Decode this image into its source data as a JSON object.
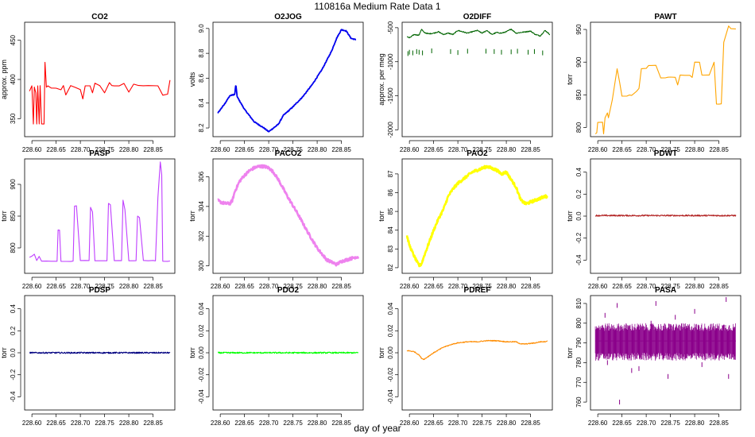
{
  "figure": {
    "title": "110816a   Medium Rate Data 1",
    "xlabel": "day of year"
  },
  "chart_data": [
    {
      "type": "line",
      "title": "CO2",
      "ylabel": "approx. ppm",
      "color": "#ff0000",
      "xlim": [
        228.585,
        228.895
      ],
      "ylim": [
        327,
        473
      ],
      "xticks": [
        "228.60",
        "228.65",
        "228.70",
        "228.75",
        "228.80",
        "228.85"
      ],
      "yticks": [
        "350",
        "400",
        "450"
      ],
      "series": [
        {
          "x": [
            228.595,
            228.6,
            228.603,
            228.605,
            228.608,
            228.61,
            228.612,
            228.615,
            228.617,
            228.62,
            228.625,
            228.627,
            228.63,
            228.633,
            228.64,
            228.65,
            228.66,
            228.665,
            228.67,
            228.68,
            228.69,
            228.7,
            228.705,
            228.71,
            228.72,
            228.725,
            228.73,
            228.74,
            228.75,
            228.76,
            228.765,
            228.77,
            228.78,
            228.79,
            228.8,
            228.81,
            228.82,
            228.83,
            228.84,
            228.86,
            228.87,
            228.88,
            228.885
          ],
          "y": [
            385,
            392,
            343,
            390,
            383,
            343,
            392,
            343,
            392,
            343,
            343,
            422,
            390,
            392,
            389,
            389,
            387,
            392,
            380,
            392,
            390,
            387,
            375,
            392,
            392,
            383,
            395,
            392,
            383,
            396,
            392,
            392,
            392,
            395,
            384,
            394,
            392,
            392,
            392,
            392,
            380,
            381,
            399
          ]
        }
      ]
    },
    {
      "type": "line",
      "title": "O2JOG",
      "ylabel": "volts",
      "color": "#0000ee",
      "xlim": [
        228.585,
        228.895
      ],
      "ylim": [
        8.13,
        9.05
      ],
      "xticks": [
        "228.60",
        "228.65",
        "228.70",
        "228.75",
        "228.80",
        "228.85"
      ],
      "yticks": [
        "8.2",
        "8.4",
        "8.6",
        "8.8",
        "9.0"
      ],
      "series": [
        {
          "x": [
            228.595,
            228.61,
            228.62,
            228.63,
            228.632,
            228.635,
            228.65,
            228.67,
            228.69,
            228.7,
            228.71,
            228.72,
            228.73,
            228.75,
            228.77,
            228.79,
            228.81,
            228.83,
            228.84,
            228.85,
            228.86,
            228.87,
            228.88
          ],
          "y": [
            8.32,
            8.4,
            8.46,
            8.47,
            8.55,
            8.45,
            8.35,
            8.25,
            8.2,
            8.17,
            8.2,
            8.23,
            8.3,
            8.37,
            8.45,
            8.55,
            8.67,
            8.82,
            8.92,
            8.99,
            8.98,
            8.92,
            8.91
          ]
        }
      ]
    },
    {
      "type": "line",
      "title": "O2DIFF",
      "ylabel": "approx. per meg",
      "color": "#006400",
      "xlim": [
        228.585,
        228.895
      ],
      "ylim": [
        -2100,
        -420
      ],
      "xticks": [
        "228.60",
        "228.65",
        "228.70",
        "228.75",
        "228.80",
        "228.85"
      ],
      "yticks": [
        "-2000",
        "-1500",
        "-1000",
        "-500"
      ],
      "series": [
        {
          "x": [
            228.595,
            228.6,
            228.61,
            228.62,
            228.625,
            228.63,
            228.64,
            228.65,
            228.66,
            228.67,
            228.68,
            228.69,
            228.7,
            228.71,
            228.72,
            228.73,
            228.74,
            228.75,
            228.76,
            228.77,
            228.78,
            228.79,
            228.8,
            228.81,
            228.82,
            228.83,
            228.84,
            228.85,
            228.86,
            228.87,
            228.88,
            228.89
          ],
          "y": [
            -630,
            -650,
            -600,
            -610,
            -520,
            -570,
            -590,
            -580,
            -560,
            -600,
            -580,
            -600,
            -540,
            -560,
            -580,
            -560,
            -540,
            -580,
            -540,
            -600,
            -570,
            -580,
            -560,
            -520,
            -580,
            -570,
            -560,
            -550,
            -600,
            -620,
            -540,
            -600
          ]
        },
        {
          "name": "outliers",
          "points": [
            [
              228.597,
              -880
            ],
            [
              228.6,
              -860
            ],
            [
              228.607,
              -870
            ],
            [
              228.615,
              -850
            ],
            [
              228.62,
              -860
            ],
            [
              228.627,
              -870
            ],
            [
              228.646,
              -840
            ],
            [
              228.685,
              -850
            ],
            [
              228.7,
              -865
            ],
            [
              228.72,
              -845
            ],
            [
              228.758,
              -845
            ],
            [
              228.775,
              -850
            ],
            [
              228.79,
              -860
            ],
            [
              228.81,
              -855
            ],
            [
              228.823,
              -845
            ],
            [
              228.845,
              -860
            ],
            [
              228.858,
              -850
            ],
            [
              228.875,
              -870
            ]
          ]
        }
      ]
    },
    {
      "type": "line",
      "title": "PAWT",
      "ylabel": "torr",
      "color": "#ffa500",
      "xlim": [
        228.585,
        228.895
      ],
      "ylim": [
        786,
        961
      ],
      "xticks": [
        "228.60",
        "228.65",
        "228.70",
        "228.75",
        "228.80",
        "228.85"
      ],
      "yticks": [
        "800",
        "850",
        "900",
        "950"
      ],
      "series": [
        {
          "x": [
            228.595,
            228.598,
            228.6,
            228.605,
            228.61,
            228.612,
            228.615,
            228.62,
            228.622,
            228.63,
            228.64,
            228.645,
            228.65,
            228.66,
            228.665,
            228.67,
            228.68,
            228.685,
            228.69,
            228.7,
            228.705,
            228.71,
            228.72,
            228.73,
            228.74,
            228.745,
            228.75,
            228.76,
            228.765,
            228.77,
            228.78,
            228.79,
            228.795,
            228.8,
            228.81,
            228.815,
            228.82,
            228.83,
            228.84,
            228.845,
            228.85,
            228.855,
            228.86,
            228.87,
            228.875,
            228.885
          ],
          "y": [
            790,
            792,
            808,
            808,
            808,
            790,
            815,
            822,
            815,
            842,
            890,
            870,
            848,
            848,
            850,
            849,
            855,
            860,
            890,
            890,
            895,
            895,
            895,
            876,
            876,
            877,
            877,
            877,
            865,
            880,
            880,
            880,
            877,
            900,
            900,
            880,
            880,
            880,
            900,
            836,
            836,
            836,
            930,
            955,
            951,
            951
          ]
        }
      ]
    },
    {
      "type": "line",
      "title": "PASP",
      "ylabel": "torr",
      "color": "#bf3eff",
      "xlim": [
        228.585,
        228.895
      ],
      "ylim": [
        760,
        940
      ],
      "xticks": [
        "228.60",
        "228.65",
        "228.70",
        "228.75",
        "228.80",
        "228.85"
      ],
      "yticks": [
        "800",
        "850",
        "900"
      ],
      "series": [
        {
          "x": [
            228.595,
            228.6,
            228.605,
            228.61,
            228.615,
            228.62,
            228.63,
            228.64,
            228.652,
            228.654,
            228.657,
            228.66,
            228.67,
            228.68,
            228.685,
            228.688,
            228.692,
            228.7,
            228.71,
            228.718,
            228.721,
            228.725,
            228.73,
            228.74,
            228.75,
            228.755,
            228.758,
            228.762,
            228.77,
            228.78,
            228.785,
            228.788,
            228.792,
            228.8,
            228.81,
            228.815,
            228.818,
            228.822,
            228.83,
            228.84,
            228.85,
            228.855,
            228.86,
            228.865,
            228.868,
            228.87,
            228.88,
            228.885
          ],
          "y": [
            785,
            787,
            790,
            780,
            787,
            779,
            779,
            779,
            779,
            828,
            828,
            779,
            779,
            779,
            779,
            866,
            866,
            780,
            780,
            780,
            864,
            857,
            780,
            780,
            780,
            780,
            870,
            868,
            780,
            780,
            780,
            875,
            860,
            780,
            780,
            780,
            850,
            848,
            780,
            780,
            780,
            780,
            880,
            935,
            915,
            779,
            779,
            779
          ]
        }
      ]
    },
    {
      "type": "line",
      "title": "PACO2",
      "ylabel": "torr",
      "color": "#ee82ee",
      "xlim": [
        228.585,
        228.895
      ],
      "ylim": [
        299.5,
        307.2
      ],
      "xticks": [
        "228.60",
        "228.65",
        "228.70",
        "228.75",
        "228.80",
        "228.85"
      ],
      "yticks": [
        "300",
        "302",
        "304",
        "306"
      ],
      "series": [
        {
          "x": [
            228.595,
            228.6,
            228.61,
            228.62,
            228.625,
            228.63,
            228.64,
            228.65,
            228.66,
            228.67,
            228.68,
            228.69,
            228.7,
            228.71,
            228.72,
            228.74,
            228.76,
            228.78,
            228.8,
            228.82,
            228.84,
            228.85,
            228.86,
            228.87,
            228.88,
            228.885
          ],
          "y": [
            304.4,
            304.3,
            304.2,
            304.2,
            304.4,
            305,
            305.7,
            306.1,
            306.4,
            306.6,
            306.7,
            306.7,
            306.6,
            306.3,
            305.8,
            304.6,
            303.5,
            302.3,
            301.2,
            300.4,
            300.1,
            300.3,
            300.4,
            300.5,
            300.6,
            300.6
          ]
        }
      ]
    },
    {
      "type": "line",
      "title": "PAO2",
      "ylabel": "torr",
      "color": "#ffff00",
      "xlim": [
        228.585,
        228.895
      ],
      "ylim": [
        81.7,
        87.8
      ],
      "xticks": [
        "228.60",
        "228.65",
        "228.70",
        "228.75",
        "228.80",
        "228.85"
      ],
      "yticks": [
        "82",
        "83",
        "84",
        "85",
        "86",
        "87"
      ],
      "series": [
        {
          "x": [
            228.595,
            228.6,
            228.61,
            228.62,
            228.625,
            228.63,
            228.64,
            228.65,
            228.66,
            228.67,
            228.68,
            228.69,
            228.7,
            228.71,
            228.72,
            228.73,
            228.74,
            228.75,
            228.76,
            228.77,
            228.78,
            228.79,
            228.8,
            228.81,
            228.82,
            228.83,
            228.84,
            228.85,
            228.86,
            228.87,
            228.88,
            228.885
          ],
          "y": [
            83.7,
            83.2,
            82.6,
            82.1,
            82.2,
            82.6,
            83.3,
            84,
            84.6,
            85.1,
            85.8,
            86.2,
            86.5,
            86.7,
            86.9,
            87.1,
            87.2,
            87.3,
            87.4,
            87.3,
            87.2,
            87,
            87.1,
            86.7,
            86.3,
            85.6,
            85.4,
            85.5,
            85.6,
            85.7,
            85.8,
            85.8
          ]
        }
      ]
    },
    {
      "type": "line",
      "title": "PDWT",
      "ylabel": "torr",
      "color": "#b22222",
      "xlim": [
        228.585,
        228.895
      ],
      "ylim": [
        -0.52,
        0.52
      ],
      "xticks": [
        "228.60",
        "228.65",
        "228.70",
        "228.75",
        "228.80",
        "228.85"
      ],
      "yticks": [
        "-0.4",
        "-0.2",
        "0.0",
        "0.2",
        "0.4"
      ],
      "series": [
        {
          "x": [
            228.595,
            228.885
          ],
          "y": [
            0.005,
            0.005
          ]
        }
      ]
    },
    {
      "type": "line",
      "title": "PDSP",
      "ylabel": "torr",
      "color": "#000080",
      "xlim": [
        228.585,
        228.895
      ],
      "ylim": [
        -0.52,
        0.52
      ],
      "xticks": [
        "228.60",
        "228.65",
        "228.70",
        "228.75",
        "228.80",
        "228.85"
      ],
      "yticks": [
        "-0.4",
        "-0.2",
        "0.0",
        "0.2",
        "0.4"
      ],
      "series": [
        {
          "x": [
            228.595,
            228.885
          ],
          "y": [
            0.0,
            0.0
          ]
        }
      ]
    },
    {
      "type": "line",
      "title": "PDO2",
      "ylabel": "torr",
      "color": "#00ff00",
      "xlim": [
        228.585,
        228.895
      ],
      "ylim": [
        -0.052,
        0.052
      ],
      "xticks": [
        "228.60",
        "228.65",
        "228.70",
        "228.75",
        "228.80",
        "228.85"
      ],
      "yticks": [
        "-0.04",
        "-0.02",
        "0.00",
        "0.02",
        "0.04"
      ],
      "series": [
        {
          "x": [
            228.595,
            228.885
          ],
          "y": [
            0.0,
            0.0
          ]
        }
      ]
    },
    {
      "type": "line",
      "title": "PDREF",
      "ylabel": "torr",
      "color": "#ff8c00",
      "xlim": [
        228.585,
        228.895
      ],
      "ylim": [
        -0.052,
        0.052
      ],
      "xticks": [
        "228.60",
        "228.65",
        "228.70",
        "228.75",
        "228.80",
        "228.85"
      ],
      "yticks": [
        "-0.04",
        "-0.02",
        "0.00",
        "0.02",
        "0.04"
      ],
      "series": [
        {
          "x": [
            228.595,
            228.61,
            228.62,
            228.625,
            228.63,
            228.64,
            228.65,
            228.67,
            228.69,
            228.7,
            228.72,
            228.74,
            228.76,
            228.78,
            228.8,
            228.82,
            228.83,
            228.84,
            228.86,
            228.87,
            228.88,
            228.885
          ],
          "y": [
            0.002,
            0.001,
            -0.002,
            -0.005,
            -0.006,
            -0.003,
            0.0,
            0.005,
            0.008,
            0.009,
            0.01,
            0.01,
            0.011,
            0.011,
            0.01,
            0.01,
            0.008,
            0.008,
            0.009,
            0.01,
            0.01,
            0.011
          ]
        }
      ]
    },
    {
      "type": "line",
      "title": "PASA",
      "ylabel": "torr",
      "color": "#8b008b",
      "xlim": [
        228.585,
        228.895
      ],
      "ylim": [
        756,
        814
      ],
      "xticks": [
        "228.60",
        "228.65",
        "228.70",
        "228.75",
        "228.80",
        "228.85"
      ],
      "yticks": [
        "760",
        "770",
        "780",
        "790",
        "800",
        "810"
      ],
      "series": [
        {
          "name": "center",
          "x": [
            228.595,
            228.885
          ],
          "y": [
            791,
            791
          ]
        },
        {
          "name": "band",
          "low": 783,
          "high": 798
        },
        {
          "name": "spikes",
          "points": [
            [
              228.615,
              804
            ],
            [
              228.62,
              780
            ],
            [
              228.64,
              809
            ],
            [
              228.645,
              760
            ],
            [
              228.67,
              776
            ],
            [
              228.685,
              777
            ],
            [
              228.71,
              800
            ],
            [
              228.72,
              810
            ],
            [
              228.745,
              773
            ],
            [
              228.76,
              803
            ],
            [
              228.8,
              806
            ],
            [
              228.815,
              779
            ],
            [
              228.86,
              798
            ],
            [
              228.865,
              812
            ],
            [
              228.87,
              773
            ]
          ]
        }
      ]
    }
  ]
}
